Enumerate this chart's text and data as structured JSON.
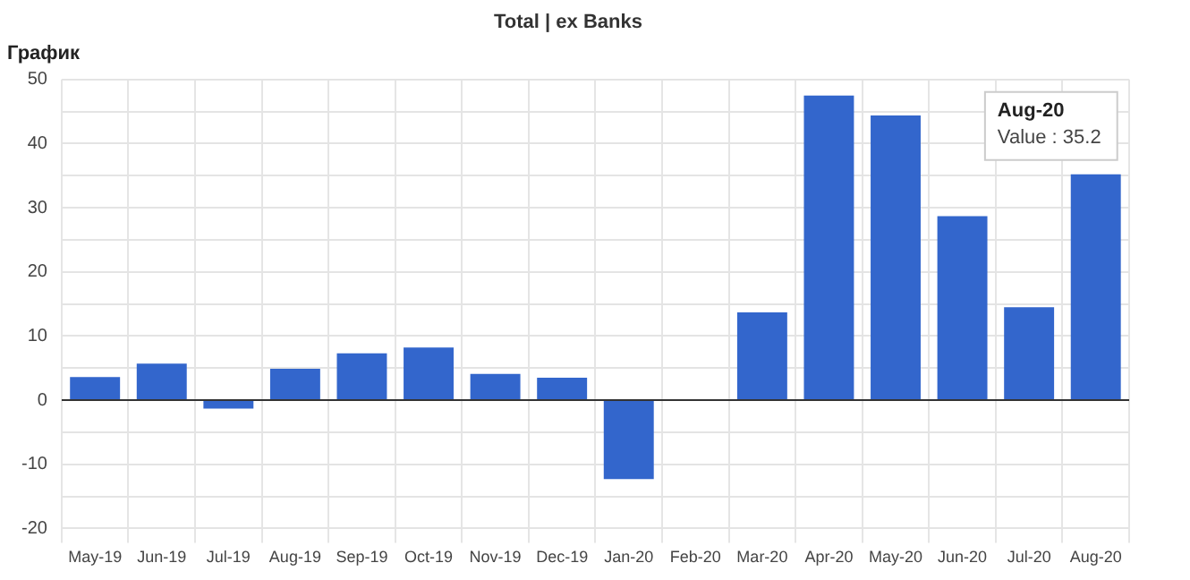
{
  "chart_data": {
    "type": "bar",
    "title": "Total | ex Banks",
    "subtitle": "График",
    "categories": [
      "May-19",
      "Jun-19",
      "Jul-19",
      "Aug-19",
      "Sep-19",
      "Oct-19",
      "Nov-19",
      "Dec-19",
      "Jan-20",
      "Feb-20",
      "Mar-20",
      "Apr-20",
      "May-20",
      "Jun-20",
      "Jul-20",
      "Aug-20"
    ],
    "values": [
      3.6,
      5.7,
      -1.3,
      4.9,
      7.3,
      8.2,
      4.1,
      3.5,
      -12.3,
      null,
      13.7,
      47.5,
      44.4,
      28.7,
      14.5,
      35.2
    ],
    "color": "#3366cc",
    "ylim": [
      -20,
      50
    ],
    "yticks": [
      -20,
      {
        "value": -15,
        "label": null
      },
      -10,
      {
        "value": -5,
        "label": null
      },
      0,
      {
        "value": 5,
        "label": null
      },
      10,
      {
        "value": 15,
        "label": null
      },
      20,
      {
        "value": 25,
        "label": null
      },
      30,
      {
        "value": 35,
        "label": null
      },
      40,
      {
        "value": 45,
        "label": null
      },
      50
    ],
    "grid": true,
    "annotations": [
      {
        "text": "Aug-20\nValue : 35.2",
        "x": "Aug-20",
        "y": 35.2
      }
    ]
  }
}
